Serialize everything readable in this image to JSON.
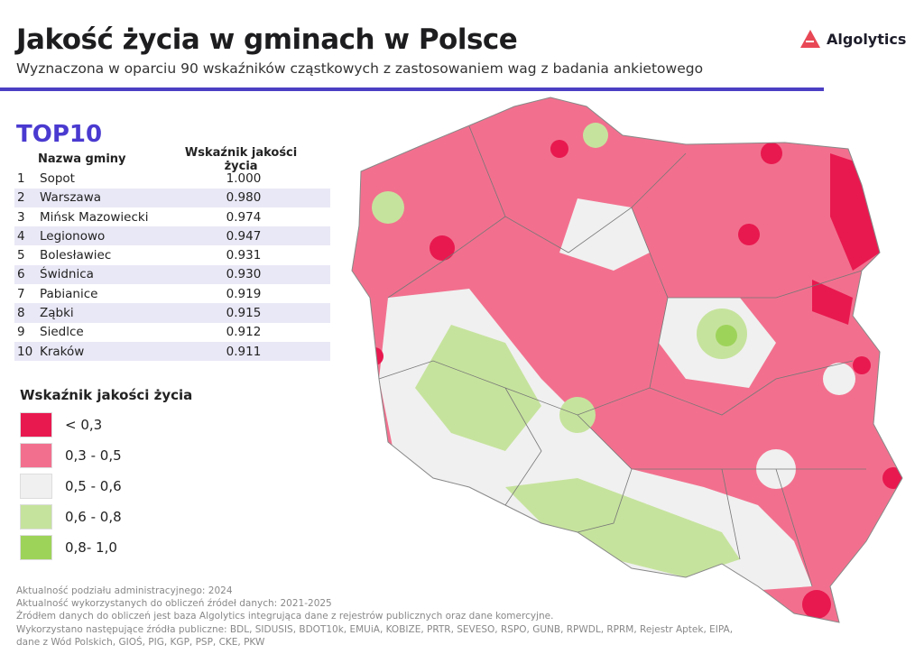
{
  "header": {
    "title": "Jakość życia w gminach w Polsce",
    "subtitle": "Wyznaczona w oparciu 90 wskaźników cząstkowych z zastosowaniem wag z badania ankietowego",
    "logo": "Algolytics"
  },
  "top10": {
    "title": "TOP10",
    "col_name": "Nazwa gminy",
    "col_value": "Wskaźnik jakości życia",
    "rows": [
      {
        "rank": "1",
        "name": "Sopot",
        "value": "1.000"
      },
      {
        "rank": "2",
        "name": "Warszawa",
        "value": "0.980"
      },
      {
        "rank": "3",
        "name": "Mińsk Mazowiecki",
        "value": "0.974"
      },
      {
        "rank": "4",
        "name": "Legionowo",
        "value": "0.947"
      },
      {
        "rank": "5",
        "name": "Bolesławiec",
        "value": "0.931"
      },
      {
        "rank": "6",
        "name": "Świdnica",
        "value": "0.930"
      },
      {
        "rank": "7",
        "name": "Pabianice",
        "value": "0.919"
      },
      {
        "rank": "8",
        "name": "Ząbki",
        "value": "0.915"
      },
      {
        "rank": "9",
        "name": "Siedlce",
        "value": "0.912"
      },
      {
        "rank": "10",
        "name": "Kraków",
        "value": "0.911"
      }
    ]
  },
  "legend": {
    "title": "Wskaźnik jakości życia",
    "items": [
      {
        "label": "< 0,3",
        "color": "#e8194f"
      },
      {
        "label": "0,3 - 0,5",
        "color": "#f2708e"
      },
      {
        "label": "0,5 - 0,6",
        "color": "#f0f0f0"
      },
      {
        "label": "0,6 - 0,8",
        "color": "#c6e39d"
      },
      {
        "label": "0,8- 1,0",
        "color": "#9ed35a"
      }
    ]
  },
  "footer": [
    "Aktualność podziału administracyjnego: 2024",
    "Aktualność wykorzystanych do obliczeń źródeł danych: 2021-2025",
    "Źródłem danych do obliczeń jest baza Algolytics integrująca dane z rejestrów publicznych oraz dane komercyjne.",
    "Wykorzystano następujące źródła publiczne: BDL, SIDUSIS, BDOT10k, EMUiA, KOBIZE, PRTR, SEVESO, RSPO, GUNB, RPWDL, RPRM, Rejestr Aptek, EIPA,",
    "dane z Wód Polskich, GIOŚ, PIG, KGP, PSP, CKE, PKW"
  ],
  "colors": {
    "accent": "#4b3fc4",
    "top10": "#4a3ad0",
    "logo_red": "#e84855"
  }
}
